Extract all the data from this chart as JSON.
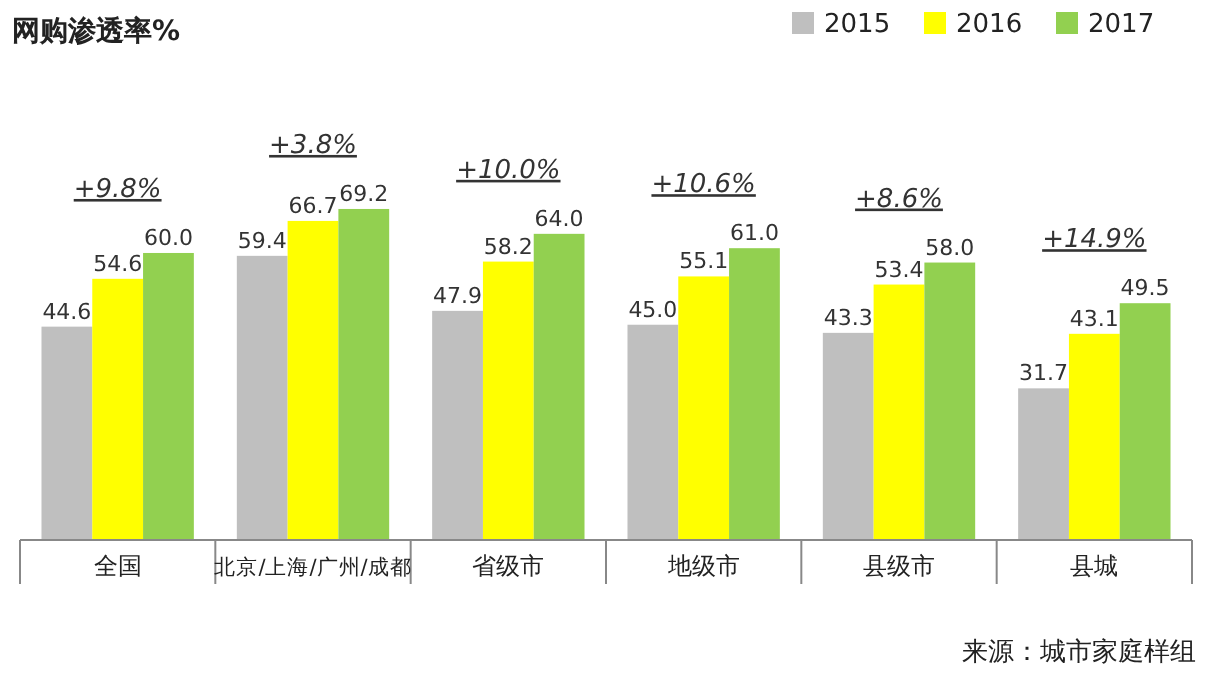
{
  "chart_data": {
    "type": "bar",
    "title": "网购渗透率%",
    "categories": [
      "全国",
      "北京/上海/广州/成都",
      "省级市",
      "地级市",
      "县级市",
      "县城"
    ],
    "series": [
      {
        "name": "2015",
        "color": "#bfbfbf",
        "values": [
          44.6,
          59.4,
          47.9,
          45.0,
          43.3,
          31.7
        ],
        "value_labels": [
          "44.6",
          "59.4",
          "47.9",
          "45.0",
          "43.3",
          "31.7"
        ]
      },
      {
        "name": "2016",
        "color": "#ffff00",
        "values": [
          54.6,
          66.7,
          58.2,
          55.1,
          53.4,
          43.1
        ],
        "value_labels": [
          "54.6",
          "66.7",
          "58.2",
          "55.1",
          "53.4",
          "43.1"
        ]
      },
      {
        "name": "2017",
        "color": "#92d050",
        "values": [
          60.0,
          69.2,
          64.0,
          61.0,
          58.0,
          49.5
        ],
        "value_labels": [
          "60.0",
          "69.2",
          "64.0",
          "61.0",
          "58.0",
          "49.5"
        ]
      }
    ],
    "legend": "top right",
    "annotations": [
      "+9.8%",
      "+3.8%",
      "+10.0%",
      "+10.6%",
      "+8.6%",
      "+14.9%",
      "来源：城市家庭样组"
    ]
  }
}
